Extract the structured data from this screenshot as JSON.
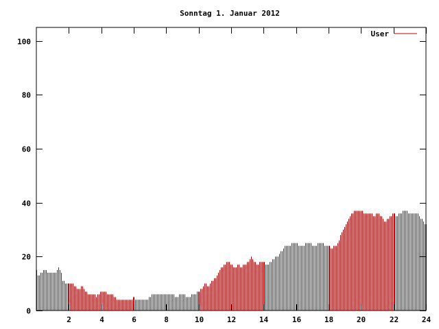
{
  "chart_data": {
    "type": "bar",
    "title": "Sonntag 1. Januar 2012",
    "xlabel": "",
    "ylabel": "",
    "xlim": [
      0,
      24
    ],
    "ylim": [
      0,
      105
    ],
    "x_ticks": [
      2,
      4,
      6,
      8,
      10,
      12,
      14,
      16,
      18,
      20,
      22,
      24
    ],
    "y_ticks": [
      0,
      20,
      40,
      60,
      80,
      100
    ],
    "grid": false,
    "legend_position": "top-right",
    "series": [
      {
        "name": "User",
        "color": "#cc0000",
        "anchors": [
          [
            0.0,
            15
          ],
          [
            0.1,
            13
          ],
          [
            0.3,
            14
          ],
          [
            0.5,
            15
          ],
          [
            0.7,
            14
          ],
          [
            1.0,
            14
          ],
          [
            1.2,
            14
          ],
          [
            1.35,
            16
          ],
          [
            1.5,
            14
          ],
          [
            1.6,
            11
          ],
          [
            1.8,
            10
          ],
          [
            2.0,
            10
          ],
          [
            2.25,
            10
          ],
          [
            2.4,
            9
          ],
          [
            2.6,
            8
          ],
          [
            2.8,
            9
          ],
          [
            3.0,
            7
          ],
          [
            3.2,
            6
          ],
          [
            3.5,
            6
          ],
          [
            3.7,
            5
          ],
          [
            3.9,
            7
          ],
          [
            4.2,
            7
          ],
          [
            4.4,
            6
          ],
          [
            4.6,
            6
          ],
          [
            4.8,
            5
          ],
          [
            5.0,
            4
          ],
          [
            5.4,
            4
          ],
          [
            5.8,
            4
          ],
          [
            6.0,
            5
          ],
          [
            6.2,
            4
          ],
          [
            6.5,
            4
          ],
          [
            6.8,
            4
          ],
          [
            7.0,
            5
          ],
          [
            7.2,
            6
          ],
          [
            7.6,
            6
          ],
          [
            8.0,
            6
          ],
          [
            8.4,
            6
          ],
          [
            8.6,
            5
          ],
          [
            8.8,
            6
          ],
          [
            9.0,
            6
          ],
          [
            9.3,
            5
          ],
          [
            9.6,
            6
          ],
          [
            10.0,
            7
          ],
          [
            10.2,
            8
          ],
          [
            10.4,
            10
          ],
          [
            10.6,
            9
          ],
          [
            10.8,
            11
          ],
          [
            11.0,
            12
          ],
          [
            11.2,
            14
          ],
          [
            11.4,
            16
          ],
          [
            11.6,
            17
          ],
          [
            11.8,
            18
          ],
          [
            12.0,
            17
          ],
          [
            12.2,
            16
          ],
          [
            12.4,
            17
          ],
          [
            12.6,
            16
          ],
          [
            12.8,
            17
          ],
          [
            13.0,
            18
          ],
          [
            13.2,
            20
          ],
          [
            13.4,
            18
          ],
          [
            13.6,
            17
          ],
          [
            13.8,
            18
          ],
          [
            14.0,
            18
          ],
          [
            14.2,
            17
          ],
          [
            14.4,
            18
          ],
          [
            14.6,
            19
          ],
          [
            14.8,
            20
          ],
          [
            15.0,
            21
          ],
          [
            15.2,
            23
          ],
          [
            15.4,
            24
          ],
          [
            15.6,
            24
          ],
          [
            15.8,
            25
          ],
          [
            16.0,
            25
          ],
          [
            16.2,
            24
          ],
          [
            16.4,
            24
          ],
          [
            16.6,
            25
          ],
          [
            16.8,
            25
          ],
          [
            17.0,
            24
          ],
          [
            17.2,
            24
          ],
          [
            17.4,
            25
          ],
          [
            17.6,
            25
          ],
          [
            17.8,
            24
          ],
          [
            18.0,
            24
          ],
          [
            18.2,
            23
          ],
          [
            18.4,
            24
          ],
          [
            18.6,
            25
          ],
          [
            18.8,
            29
          ],
          [
            19.0,
            31
          ],
          [
            19.2,
            34
          ],
          [
            19.4,
            36
          ],
          [
            19.6,
            37
          ],
          [
            19.8,
            37
          ],
          [
            20.0,
            37
          ],
          [
            20.2,
            36
          ],
          [
            20.4,
            36
          ],
          [
            20.6,
            36
          ],
          [
            20.8,
            35
          ],
          [
            21.0,
            36
          ],
          [
            21.2,
            35
          ],
          [
            21.4,
            33
          ],
          [
            21.6,
            34
          ],
          [
            21.8,
            35
          ],
          [
            22.0,
            36
          ],
          [
            22.2,
            35
          ],
          [
            22.4,
            36
          ],
          [
            22.6,
            37
          ],
          [
            22.8,
            37
          ],
          [
            23.0,
            36
          ],
          [
            23.2,
            36
          ],
          [
            23.4,
            36
          ],
          [
            23.6,
            35
          ],
          [
            23.8,
            33
          ],
          [
            24.0,
            32
          ]
        ]
      }
    ]
  }
}
